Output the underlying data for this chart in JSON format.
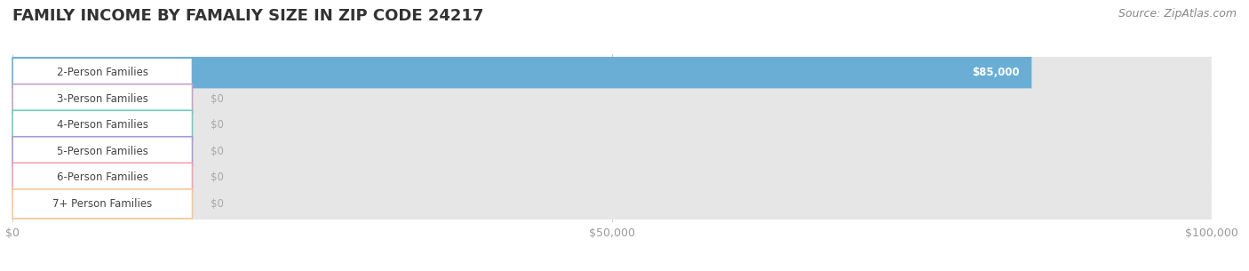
{
  "title": "FAMILY INCOME BY FAMALIY SIZE IN ZIP CODE 24217",
  "source": "Source: ZipAtlas.com",
  "categories": [
    "2-Person Families",
    "3-Person Families",
    "4-Person Families",
    "5-Person Families",
    "6-Person Families",
    "7+ Person Families"
  ],
  "values": [
    85000,
    0,
    0,
    0,
    0,
    0
  ],
  "bar_colors": [
    "#6aaed6",
    "#c9a0c8",
    "#6ecfbc",
    "#a89cd4",
    "#f4a0b0",
    "#f5c99a"
  ],
  "value_labels": [
    "$85,000",
    "$0",
    "$0",
    "$0",
    "$0",
    "$0"
  ],
  "xlim": [
    0,
    100000
  ],
  "xticks": [
    0,
    50000,
    100000
  ],
  "xtick_labels": [
    "$0",
    "$50,000",
    "$100,000"
  ],
  "bg_color": "#ffffff",
  "bar_bg_color": "#e6e6e6",
  "title_fontsize": 13,
  "label_fontsize": 8.5,
  "value_fontsize": 8.5,
  "source_fontsize": 9
}
